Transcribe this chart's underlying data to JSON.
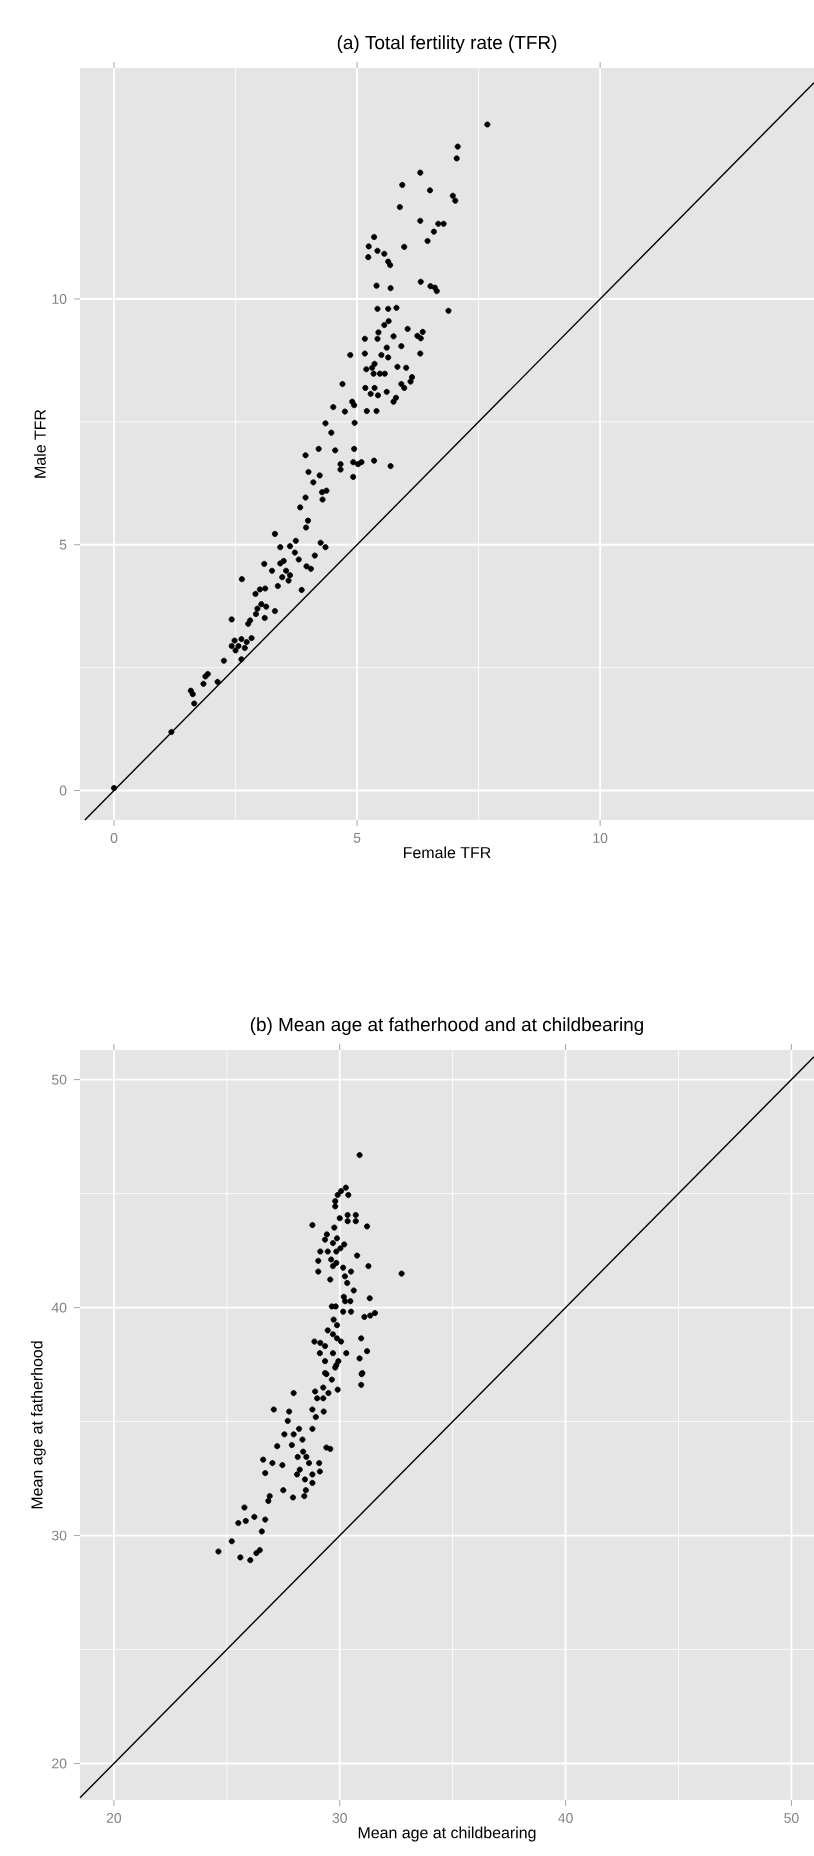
{
  "chart_data": [
    {
      "type": "scatter",
      "title": "(a) Total fertility rate (TFR)",
      "xlabel": "Female TFR",
      "ylabel": "Male TFR",
      "xlim": [
        -0.7,
        14.4
      ],
      "ylim": [
        -0.6,
        14.7
      ],
      "xticks": [
        0,
        5,
        10
      ],
      "yticks": [
        0,
        5,
        10
      ],
      "grid": true,
      "series": [
        {
          "color": "#000000",
          "marker": "circle",
          "x": [
            7.68,
            7.07,
            7.05,
            6.3,
            5.93,
            6.5,
            6.97,
            7.02,
            5.88,
            6.3,
            6.67,
            6.78,
            6.58,
            6.45,
            5.35,
            5.24,
            5.42,
            5.56,
            5.23,
            5.64,
            5.68,
            5.97,
            5.4,
            5.69,
            6.31,
            6.51,
            6.6,
            6.64,
            6.88,
            5.42,
            5.64,
            5.81,
            5.65,
            5.56,
            5.44,
            5.42,
            5.16,
            5.75,
            6.04,
            6.24,
            6.35,
            6.31,
            5.61,
            5.91,
            5.5,
            4.86,
            5.16,
            6.3,
            5.36,
            5.31,
            5.19,
            5.64,
            5.83,
            6.01,
            5.34,
            5.47,
            5.57,
            6.13,
            6.1,
            5.91,
            4.7,
            5.17,
            5.36,
            5.97,
            5.28,
            5.43,
            5.61,
            5.8,
            5.75,
            4.9,
            4.94,
            4.51,
            4.75,
            5.2,
            5.4,
            4.35,
            4.95,
            4.47,
            3.94,
            4.55,
            4.21,
            4.94,
            4.66,
            4.66,
            4.92,
            5.02,
            4.92,
            5.09,
            5.35,
            5.69,
            4.0,
            4.23,
            4.1,
            4.28,
            4.37,
            3.94,
            4.29,
            3.83,
            3.99,
            3.95,
            3.31,
            3.74,
            3.62,
            3.42,
            4.25,
            4.35,
            3.72,
            4.13,
            3.49,
            3.42,
            3.8,
            3.96,
            4.05,
            3.54,
            3.62,
            3.46,
            3.25,
            3.09,
            3.59,
            3.37,
            2.63,
            3.86,
            3.0,
            3.11,
            2.91,
            3.03,
            3.13,
            2.95,
            3.31,
            2.92,
            3.1,
            2.8,
            2.76,
            2.42,
            2.62,
            2.48,
            2.42,
            2.56,
            2.73,
            2.69,
            2.5,
            2.83,
            2.62,
            2.26,
            1.93,
            1.88,
            2.13,
            1.84,
            1.58,
            1.62,
            1.65,
            1.18,
            0.0
          ],
          "values": [
            13.55,
            13.1,
            12.86,
            12.57,
            12.32,
            12.21,
            12.1,
            12.0,
            11.87,
            11.59,
            11.53,
            11.53,
            11.37,
            11.18,
            11.26,
            11.07,
            10.98,
            10.92,
            10.85,
            10.76,
            10.69,
            11.06,
            10.27,
            10.22,
            10.35,
            10.26,
            10.23,
            10.16,
            9.76,
            9.8,
            9.8,
            9.82,
            9.55,
            9.47,
            9.32,
            9.19,
            9.19,
            9.24,
            9.39,
            9.25,
            9.33,
            9.2,
            9.01,
            9.04,
            8.86,
            8.86,
            8.89,
            8.89,
            8.68,
            8.6,
            8.57,
            8.81,
            8.62,
            8.6,
            8.48,
            8.48,
            8.48,
            8.41,
            8.32,
            8.27,
            8.27,
            8.19,
            8.19,
            8.19,
            8.07,
            8.04,
            8.11,
            7.99,
            7.91,
            7.91,
            7.84,
            7.8,
            7.71,
            7.72,
            7.72,
            7.47,
            7.48,
            7.28,
            6.82,
            6.92,
            6.95,
            6.95,
            6.64,
            6.53,
            6.68,
            6.64,
            6.38,
            6.68,
            6.71,
            6.6,
            6.48,
            6.41,
            6.27,
            6.07,
            6.1,
            5.96,
            5.92,
            5.76,
            5.49,
            5.35,
            5.22,
            5.08,
            4.97,
            4.95,
            5.04,
            4.95,
            4.84,
            4.78,
            4.67,
            4.62,
            4.7,
            4.56,
            4.51,
            4.47,
            4.38,
            4.34,
            4.47,
            4.61,
            4.27,
            4.16,
            4.3,
            4.08,
            4.09,
            4.11,
            4.0,
            3.79,
            3.74,
            3.7,
            3.65,
            3.59,
            3.51,
            3.46,
            3.39,
            3.48,
            3.08,
            3.05,
            2.94,
            2.94,
            3.02,
            2.9,
            2.85,
            3.1,
            2.67,
            2.64,
            2.37,
            2.32,
            2.21,
            2.17,
            2.03,
            1.96,
            1.77,
            1.19,
            0.05
          ]
        },
        {
          "type": "line",
          "color": "#000000",
          "x": [
            -0.6,
            14.4
          ],
          "values": [
            -0.6,
            14.4
          ]
        }
      ]
    },
    {
      "type": "scatter",
      "title": "(b) Mean age at fatherhood and at childbearing",
      "xlabel": "Mean age at childbearing",
      "ylabel": "Mean age at fatherhood",
      "xlim": [
        18.5,
        51.0
      ],
      "ylim": [
        18.4,
        51.3
      ],
      "xticks": [
        20,
        30,
        40,
        50
      ],
      "yticks": [
        20,
        30,
        40,
        50
      ],
      "grid": true,
      "series": [
        {
          "color": "#000000",
          "marker": "circle",
          "x": [
            30.88,
            30.27,
            30.06,
            29.91,
            30.38,
            29.8,
            29.8,
            30.0,
            30.35,
            30.71,
            30.35,
            30.71,
            28.79,
            31.21,
            29.76,
            29.43,
            29.88,
            29.35,
            29.7,
            30.2,
            30.03,
            29.14,
            29.47,
            29.85,
            30.77,
            29.62,
            29.05,
            29.85,
            29.7,
            31.27,
            30.15,
            30.5,
            29.05,
            32.74,
            30.23,
            29.58,
            30.33,
            30.62,
            30.18,
            30.24,
            31.33,
            30.47,
            29.65,
            29.82,
            30.15,
            30.5,
            31.56,
            31.35,
            31.09,
            29.73,
            29.88,
            29.7,
            29.88,
            29.47,
            28.88,
            29.14,
            29.35,
            30.06,
            30.95,
            31.21,
            29.12,
            29.7,
            30.29,
            30.88,
            29.35,
            29.94,
            29.8,
            29.35,
            31.0,
            30.97,
            30.95,
            29.85,
            29.65,
            29.41,
            29.91,
            29.27,
            28.91,
            29.5,
            27.96,
            29.0,
            29.27,
            28.79,
            29.29,
            27.08,
            27.76,
            28.94,
            27.7,
            28.2,
            28.79,
            27.55,
            27.96,
            28.35,
            27.23,
            27.88,
            29.41,
            29.58,
            28.38,
            28.52,
            28.14,
            26.61,
            27.02,
            27.46,
            28.64,
            29.09,
            28.23,
            28.11,
            26.7,
            28.79,
            29.12,
            28.46,
            28.79,
            27.5,
            28.5,
            26.9,
            26.84,
            27.93,
            28.43,
            25.78,
            26.22,
            25.51,
            25.84,
            26.7,
            26.55,
            25.22,
            24.63,
            25.6,
            26.04,
            26.31,
            26.46
          ],
          "values": [
            46.69,
            45.26,
            45.11,
            44.94,
            44.94,
            44.67,
            44.44,
            43.92,
            44.06,
            44.06,
            43.79,
            43.79,
            43.62,
            43.56,
            43.51,
            43.21,
            43.04,
            42.98,
            42.83,
            42.77,
            42.6,
            42.46,
            42.46,
            42.46,
            42.28,
            42.11,
            42.05,
            41.96,
            41.82,
            41.82,
            41.75,
            41.58,
            41.58,
            41.49,
            41.37,
            41.23,
            41.08,
            40.75,
            40.47,
            40.28,
            40.41,
            40.28,
            40.05,
            40.05,
            39.82,
            39.82,
            39.76,
            39.65,
            39.59,
            39.47,
            39.23,
            38.83,
            38.65,
            39.0,
            38.51,
            38.45,
            38.31,
            38.51,
            38.65,
            38.09,
            38.0,
            38.0,
            38.0,
            37.77,
            37.65,
            37.65,
            37.37,
            37.13,
            37.13,
            37.08,
            36.61,
            37.48,
            36.84,
            37.08,
            36.4,
            36.49,
            36.32,
            36.25,
            36.25,
            36.02,
            36.02,
            35.53,
            35.44,
            35.53,
            35.44,
            35.2,
            35.03,
            34.68,
            34.68,
            34.44,
            34.44,
            34.21,
            33.92,
            33.97,
            33.86,
            33.8,
            33.68,
            33.45,
            33.45,
            33.33,
            33.18,
            33.09,
            33.18,
            33.18,
            32.89,
            32.68,
            32.74,
            32.68,
            32.81,
            32.46,
            32.31,
            31.99,
            31.99,
            31.73,
            31.52,
            31.67,
            31.73,
            31.23,
            30.82,
            30.55,
            30.64,
            30.7,
            30.18,
            29.75,
            29.3,
            29.04,
            28.92,
            29.23,
            29.36
          ]
        },
        {
          "type": "line",
          "color": "#000000",
          "x": [
            18.5,
            51.0
          ],
          "values": [
            18.5,
            51.0
          ]
        }
      ]
    }
  ]
}
